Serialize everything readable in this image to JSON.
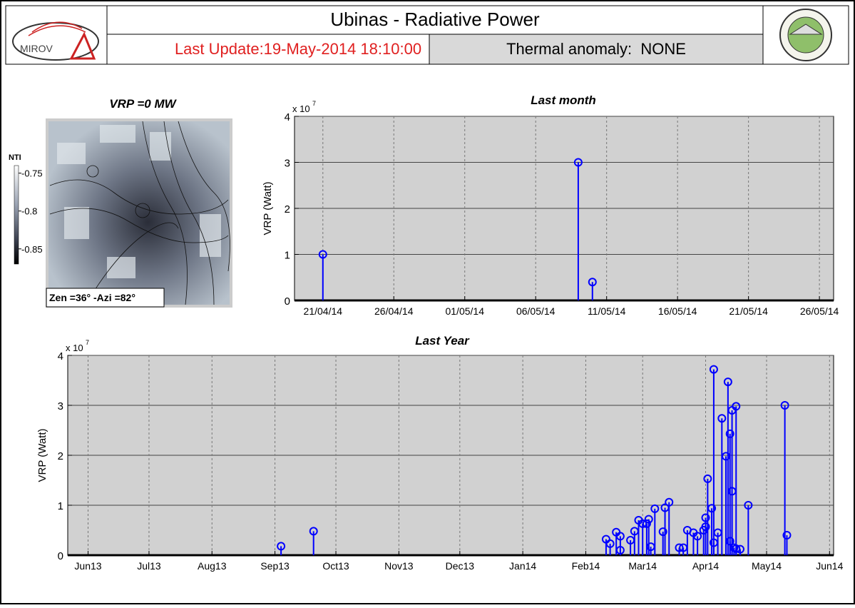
{
  "header": {
    "title": "Ubinas - Radiative Power",
    "last_update": "Last Update:19-May-2014 18:10:00",
    "thermal_anomaly": "Thermal anomaly:  NONE",
    "logo_text": "MIROV"
  },
  "image_panel": {
    "title": "VRP =0 MW",
    "colorbar_label": "NTI",
    "colorbar_lim": [
      -0.87,
      -0.74
    ],
    "colorbar_ticks": [
      -0.75,
      -0.8,
      -0.85
    ],
    "caption": "Zen =36° -Azi =82°"
  },
  "chart_data": [
    {
      "type": "stem",
      "title": "Last month",
      "y_label": "VRP (Watt)",
      "y_multiplier": "x 10",
      "y_exponent": "7",
      "color": "#0000ff",
      "x": [
        "2014-04-21",
        "2014-05-09",
        "2014-05-10"
      ],
      "values": [
        1,
        3,
        0.4
      ],
      "xlim": [
        "2014-04-19",
        "2014-05-27"
      ],
      "xticks": [
        {
          "value": "2014-04-21",
          "label": "21/04/14"
        },
        {
          "value": "2014-04-26",
          "label": "26/04/14"
        },
        {
          "value": "2014-05-01",
          "label": "01/05/14"
        },
        {
          "value": "2014-05-06",
          "label": "06/05/14"
        },
        {
          "value": "2014-05-11",
          "label": "11/05/14"
        },
        {
          "value": "2014-05-16",
          "label": "16/05/14"
        },
        {
          "value": "2014-05-21",
          "label": "21/05/14"
        },
        {
          "value": "2014-05-26",
          "label": "26/05/14"
        }
      ],
      "ylim": [
        0,
        4
      ],
      "yticks": [
        0,
        1,
        2,
        3,
        4
      ],
      "grid": true
    },
    {
      "type": "stem",
      "title": "Last Year",
      "y_label": "VRP (Watt)",
      "y_multiplier": "x 10",
      "y_exponent": "7",
      "color": "#0000ff",
      "x": [
        "2013-09-04",
        "2013-09-20",
        "2014-02-11",
        "2014-02-13",
        "2014-02-16",
        "2014-02-18",
        "2014-02-18",
        "2014-02-23",
        "2014-02-25",
        "2014-02-27",
        "2014-03-01",
        "2014-03-03",
        "2014-03-04",
        "2014-03-05",
        "2014-03-07",
        "2014-03-11",
        "2014-03-12",
        "2014-03-14",
        "2014-03-19",
        "2014-03-21",
        "2014-03-23",
        "2014-03-26",
        "2014-03-28",
        "2014-03-31",
        "2014-04-01",
        "2014-04-01",
        "2014-04-02",
        "2014-04-04",
        "2014-04-05",
        "2014-04-05",
        "2014-04-07",
        "2014-04-09",
        "2014-04-11",
        "2014-04-12",
        "2014-04-13",
        "2014-04-13",
        "2014-04-14",
        "2014-04-14",
        "2014-04-15",
        "2014-04-16",
        "2014-04-16",
        "2014-04-18",
        "2014-04-22",
        "2014-05-10",
        "2014-05-11"
      ],
      "values": [
        0.18,
        0.48,
        0.32,
        0.23,
        0.46,
        0.38,
        0.1,
        0.3,
        0.48,
        0.7,
        0.63,
        0.63,
        0.72,
        0.17,
        0.93,
        0.47,
        0.95,
        1.06,
        0.15,
        0.15,
        0.5,
        0.45,
        0.38,
        0.5,
        0.57,
        0.75,
        1.53,
        0.94,
        3.72,
        0.25,
        0.45,
        2.74,
        1.98,
        3.47,
        0.28,
        2.43,
        2.9,
        1.28,
        0.15,
        2.98,
        0.13,
        0.12,
        1.0,
        3.0,
        0.4
      ],
      "xlim": [
        "2013-05-22",
        "2014-06-03"
      ],
      "xticks": [
        {
          "value": "2013-06-01",
          "label": "Jun13"
        },
        {
          "value": "2013-07-01",
          "label": "Jul13"
        },
        {
          "value": "2013-08-01",
          "label": "Aug13"
        },
        {
          "value": "2013-09-01",
          "label": "Sep13"
        },
        {
          "value": "2013-10-01",
          "label": "Oct13"
        },
        {
          "value": "2013-11-01",
          "label": "Nov13"
        },
        {
          "value": "2013-12-01",
          "label": "Dec13"
        },
        {
          "value": "2014-01-01",
          "label": "Jan14"
        },
        {
          "value": "2014-02-01",
          "label": "Feb14"
        },
        {
          "value": "2014-03-01",
          "label": "Mar14"
        },
        {
          "value": "2014-04-01",
          "label": "Apr14"
        },
        {
          "value": "2014-05-01",
          "label": "May14"
        },
        {
          "value": "2014-06-01",
          "label": "Jun14"
        }
      ],
      "ylim": [
        0,
        4
      ],
      "yticks": [
        0,
        1,
        2,
        3,
        4
      ],
      "grid": true
    }
  ]
}
